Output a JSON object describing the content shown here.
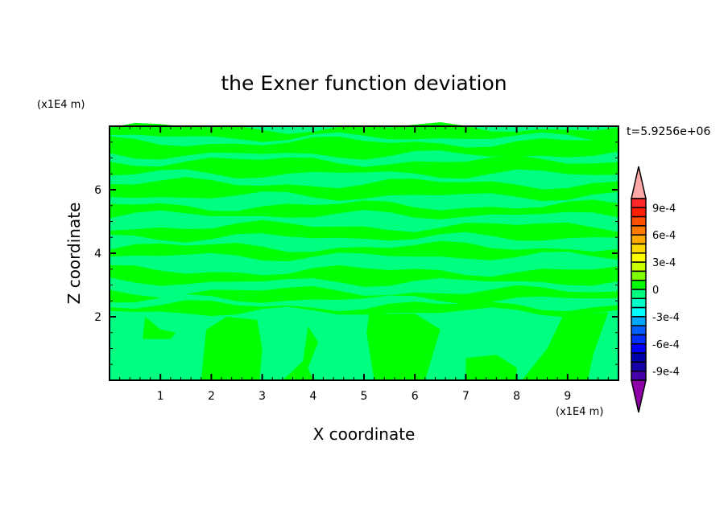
{
  "chart_data": {
    "type": "heatmap",
    "title": "the Exner function deviation",
    "xlabel": "X coordinate",
    "ylabel": "Z coordinate",
    "x_unit": "(x1E4 m)",
    "y_unit": "(x1E4 m)",
    "time_label": "t=5.9256e+06",
    "xlim": [
      0,
      10
    ],
    "ylim": [
      0,
      8
    ],
    "xticks": [
      "1",
      "2",
      "3",
      "4",
      "5",
      "6",
      "7",
      "8",
      "9"
    ],
    "yticks": [
      "2",
      "4",
      "6"
    ],
    "colorbar": {
      "levels_min": -0.001,
      "levels_max": 0.001,
      "step": 0.0001,
      "labels": [
        "9e-4",
        "6e-4",
        "3e-4",
        "0",
        "-3e-4",
        "-6e-4",
        "-9e-4"
      ],
      "label_values": [
        0.0009,
        0.0006,
        0.0003,
        0,
        -0.0003,
        -0.0006,
        -0.0009
      ],
      "colors_top_to_bottom": [
        "#ff2828",
        "#ff2000",
        "#ff5000",
        "#ff7800",
        "#ffa800",
        "#ffd800",
        "#ffff00",
        "#c8ff00",
        "#80ff00",
        "#00ff00",
        "#00ff80",
        "#00ffc8",
        "#00ffff",
        "#00a8ff",
        "#0060ff",
        "#0030ff",
        "#0000ff",
        "#0000a8",
        "#1800a8",
        "#4800a8"
      ],
      "over_color": "#ffa8a8",
      "under_color": "#9000a8"
    },
    "field_colors": {
      "background": "#00ff80",
      "positive": "#00ff00"
    }
  }
}
